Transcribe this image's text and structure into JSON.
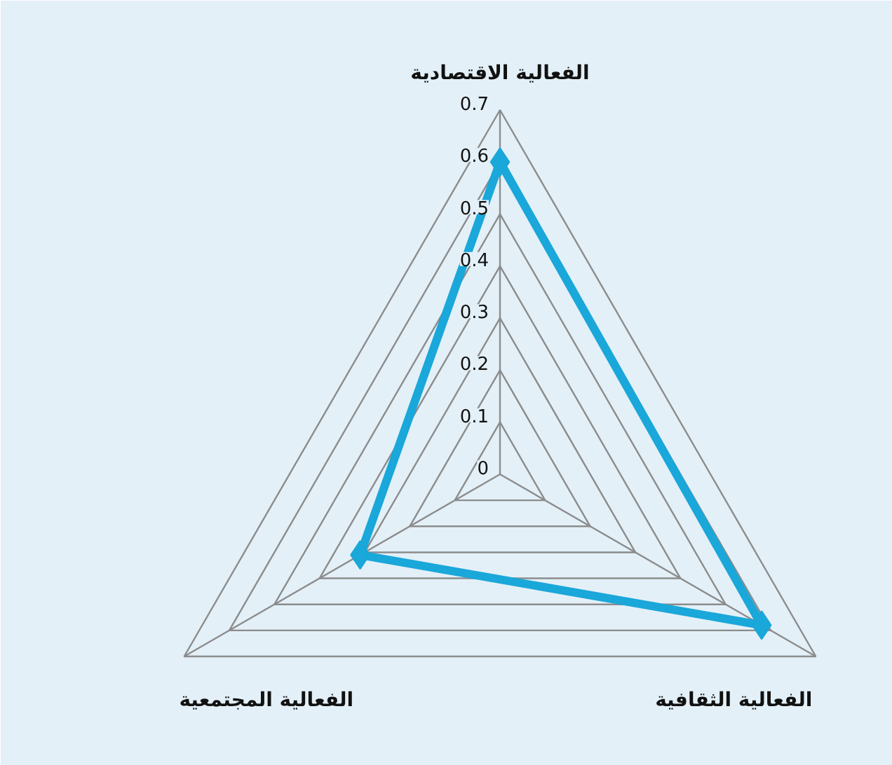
{
  "chart_data": {
    "type": "radar",
    "categories": [
      "الفعالية الاقتصادية",
      "الفعالية الثقافية",
      "الفعالية المجتمعية"
    ],
    "series": [
      {
        "color": "#1aa7d9",
        "values": [
          0.6,
          0.58,
          0.31
        ]
      }
    ],
    "ylim": [
      0,
      0.7
    ],
    "yticks": [
      0,
      0.1,
      0.2,
      0.3,
      0.4,
      0.5,
      0.6,
      0.7
    ],
    "grid": true,
    "marker": "diamond",
    "line_style": "solid"
  }
}
